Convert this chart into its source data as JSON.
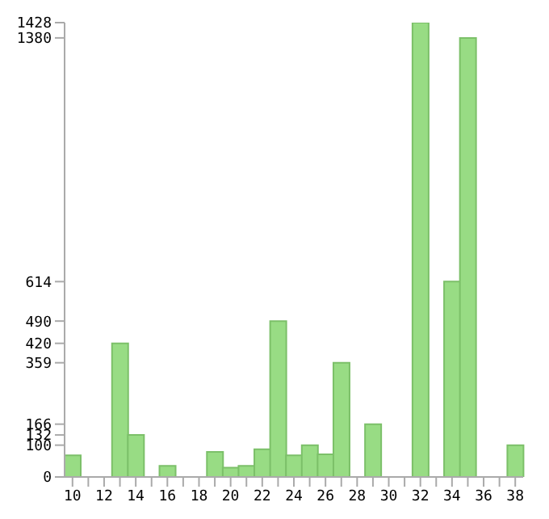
{
  "chart_data": {
    "type": "bar",
    "categories": [
      "10",
      null,
      "12",
      null,
      "14",
      null,
      "16",
      null,
      "18",
      null,
      "20",
      null,
      "22",
      null,
      "24",
      null,
      "26",
      null,
      "28",
      null,
      "30",
      null,
      "32",
      null,
      "34",
      null,
      "36",
      null,
      "38"
    ],
    "values": [
      68,
      0,
      0,
      420,
      132,
      0,
      35,
      0,
      0,
      79,
      29,
      35,
      87,
      490,
      68,
      100,
      71,
      359,
      0,
      166,
      0,
      0,
      1428,
      0,
      614,
      1380,
      0,
      0,
      100
    ],
    "color": "#98dc84",
    "ylim": [
      0,
      1428
    ],
    "yticks": [
      0,
      100,
      132,
      166,
      359,
      420,
      490,
      614,
      1380,
      1428
    ],
    "grid": false
  }
}
